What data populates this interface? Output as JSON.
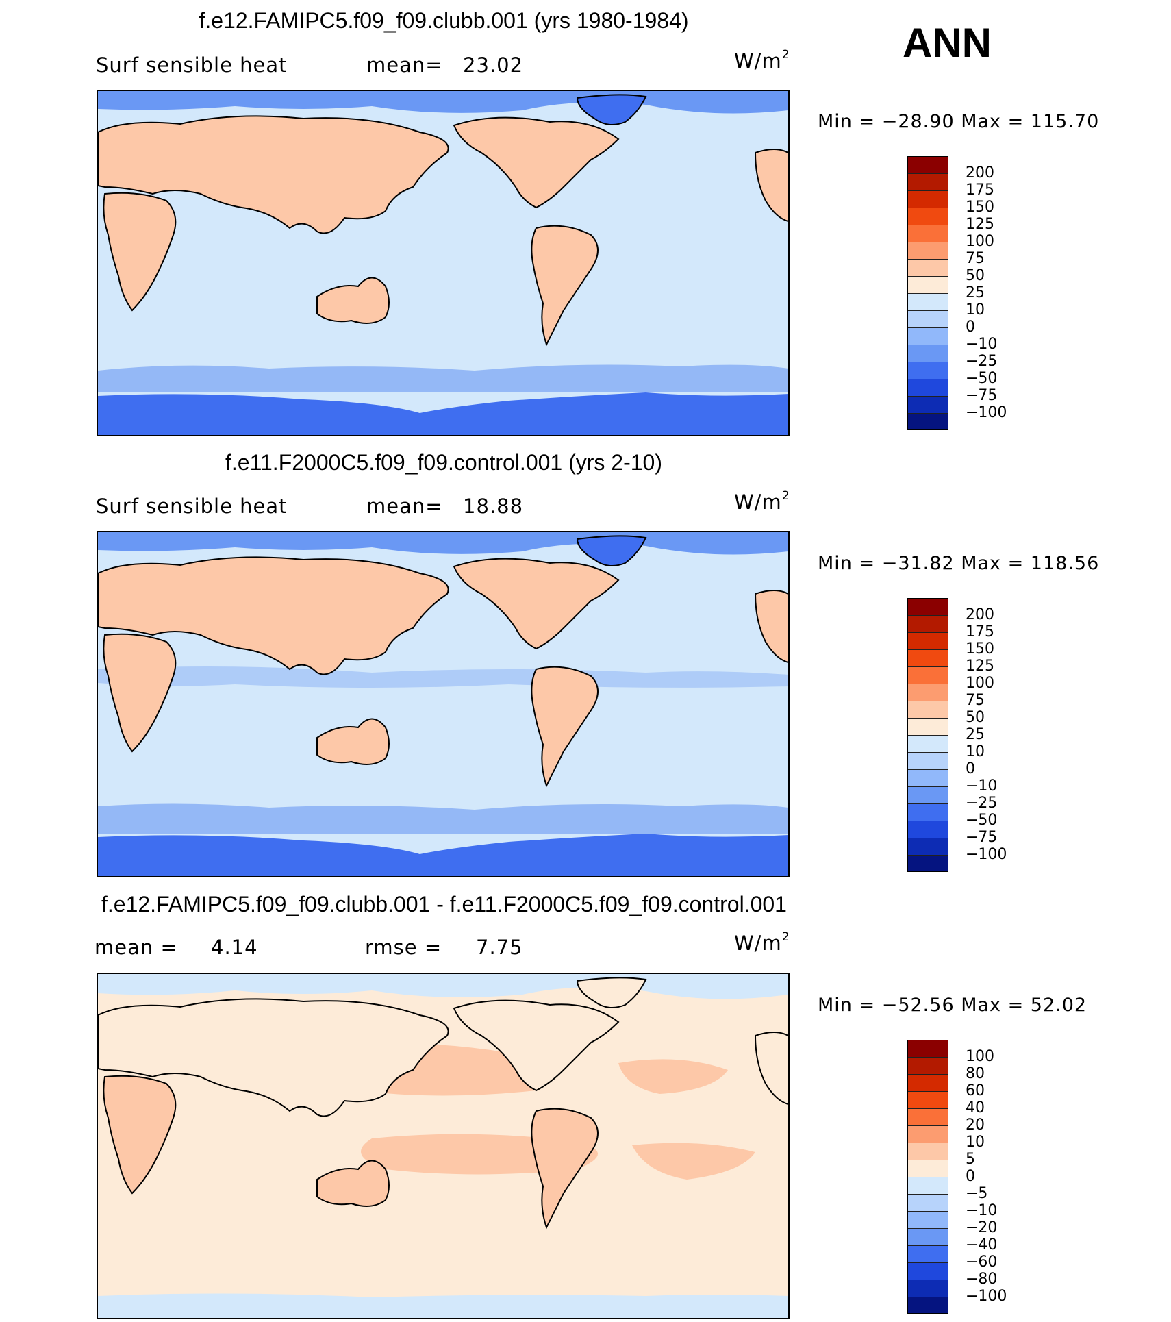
{
  "ann_label": "ANN",
  "panels": [
    {
      "title": "f.e12.FAMIPC5.f09_f09.clubb.001 (yrs 1980-1984)",
      "left_label": "Surf  sensible  heat",
      "stat_label": "mean=",
      "stat_value": "23.02",
      "units": "W/m",
      "units_exp": "2",
      "min_label": "Min  =  −28.90  Max  =  115.70",
      "colorbar": {
        "labels": [
          "200",
          "175",
          "150",
          "125",
          "100",
          "75",
          "50",
          "25",
          "10",
          "0",
          "−10",
          "−25",
          "−50",
          "−75",
          "−100"
        ],
        "colors": [
          "#8b0000",
          "#b31a00",
          "#d42a00",
          "#f04a10",
          "#fa7038",
          "#fc9c70",
          "#fdc8a8",
          "#fdebd8",
          "#d3e8fb",
          "#b7d3fb",
          "#91b8fa",
          "#6a98f4",
          "#3f6ef0",
          "#1f48dd",
          "#0d2cb4",
          "#051480"
        ]
      },
      "map_fills": {
        "ocean": "#d3e8fb",
        "land": "#fdc8a8",
        "polar": "#6a98f4",
        "antarctic": "#3f6ef0"
      }
    },
    {
      "title": "f.e11.F2000C5.f09_f09.control.001 (yrs 2-10)",
      "left_label": "Surf  sensible  heat",
      "stat_label": "mean=",
      "stat_value": "18.88",
      "units": "W/m",
      "units_exp": "2",
      "min_label": "Min  =  −31.82  Max  =  118.56",
      "colorbar": {
        "labels": [
          "200",
          "175",
          "150",
          "125",
          "100",
          "75",
          "50",
          "25",
          "10",
          "0",
          "−10",
          "−25",
          "−50",
          "−75",
          "−100"
        ],
        "colors": [
          "#8b0000",
          "#b31a00",
          "#d42a00",
          "#f04a10",
          "#fa7038",
          "#fc9c70",
          "#fdc8a8",
          "#fdebd8",
          "#d3e8fb",
          "#b7d3fb",
          "#91b8fa",
          "#6a98f4",
          "#3f6ef0",
          "#1f48dd",
          "#0d2cb4",
          "#051480"
        ]
      },
      "map_fills": {
        "ocean": "#d3e8fb",
        "land": "#fdc8a8",
        "polar": "#6a98f4",
        "antarctic": "#3f6ef0"
      }
    },
    {
      "title": "f.e12.FAMIPC5.f09_f09.clubb.001 - f.e11.F2000C5.f09_f09.control.001",
      "left_label": "mean  =",
      "left_value": "4.14",
      "stat_label": "rmse  =",
      "stat_value": "7.75",
      "units": "W/m",
      "units_exp": "2",
      "min_label": "Min  =  −52.56  Max  =   52.02",
      "colorbar": {
        "labels": [
          "100",
          "80",
          "60",
          "40",
          "20",
          "10",
          "5",
          "0",
          "−5",
          "−10",
          "−20",
          "−40",
          "−60",
          "−80",
          "−100"
        ],
        "colors": [
          "#8b0000",
          "#b31a00",
          "#d42a00",
          "#f04a10",
          "#fa7038",
          "#fc9c70",
          "#fdc8a8",
          "#fdebd8",
          "#d3e8fb",
          "#b7d3fb",
          "#91b8fa",
          "#6a98f4",
          "#3f6ef0",
          "#1f48dd",
          "#0d2cb4",
          "#051480"
        ]
      },
      "map_fills": {
        "ocean": "#fdebd8",
        "land": "#fdc8a8",
        "polar": "#d3e8fb",
        "antarctic": "#fdebd8"
      }
    }
  ]
}
